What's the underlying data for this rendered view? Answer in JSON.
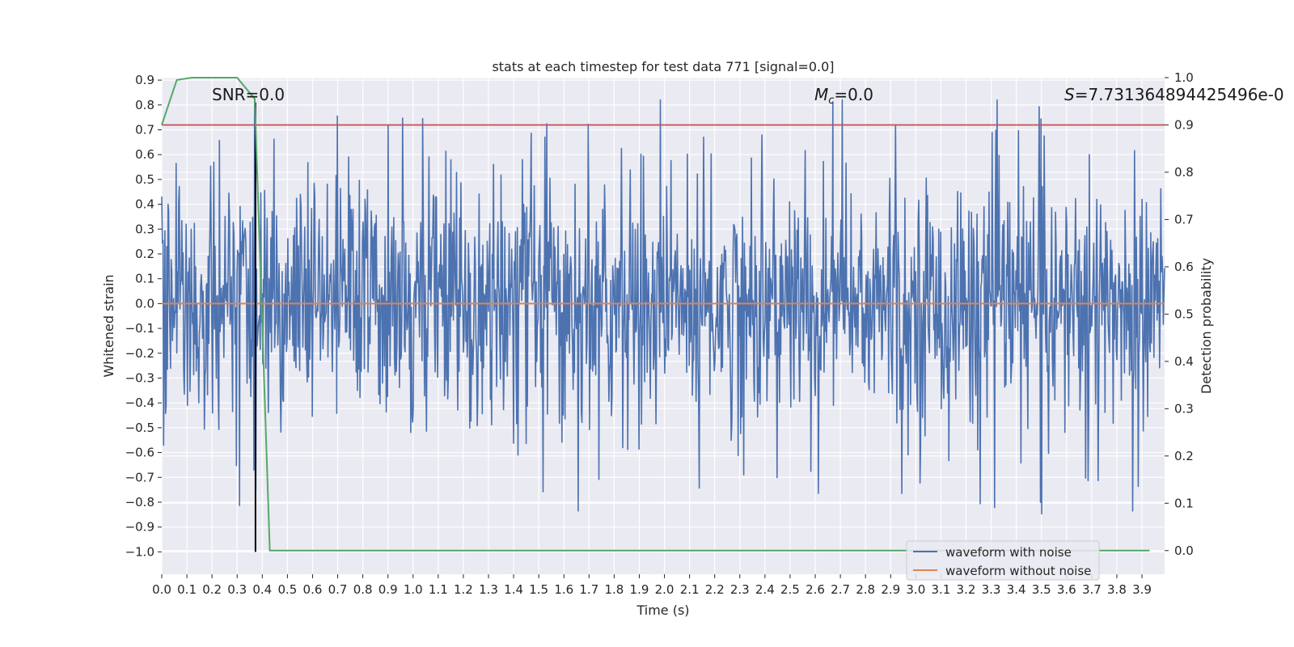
{
  "chart_data": {
    "type": "line",
    "title": "stats at each timestep for test data 771 [signal=0.0]",
    "xlabel": "Time (s)",
    "ylabel": "Whitened strain",
    "y2label": "Detection probability",
    "xlim": [
      0.0,
      3.99
    ],
    "ylim": [
      -1.09,
      0.91
    ],
    "y2lim": [
      -0.05,
      1.0
    ],
    "x_ticks": [
      "0.0",
      "0.1",
      "0.2",
      "0.3",
      "0.4",
      "0.5",
      "0.6",
      "0.7",
      "0.8",
      "0.9",
      "1.0",
      "1.1",
      "1.2",
      "1.3",
      "1.4",
      "1.5",
      "1.6",
      "1.7",
      "1.8",
      "1.9",
      "2.0",
      "2.1",
      "2.2",
      "2.3",
      "2.4",
      "2.5",
      "2.6",
      "2.7",
      "2.8",
      "2.9",
      "3.0",
      "3.1",
      "3.2",
      "3.3",
      "3.4",
      "3.5",
      "3.6",
      "3.7",
      "3.8",
      "3.9"
    ],
    "y_ticks": [
      "0.9",
      "0.8",
      "0.7",
      "0.6",
      "0.5",
      "0.4",
      "0.3",
      "0.2",
      "0.1",
      "0.0",
      "−0.1",
      "−0.2",
      "−0.3",
      "−0.4",
      "−0.5",
      "−0.6",
      "−0.7",
      "−0.8",
      "−0.9",
      "−1.0"
    ],
    "y2_ticks": [
      "1.0",
      "0.9",
      "0.8",
      "0.7",
      "0.6",
      "0.5",
      "0.4",
      "0.3",
      "0.2",
      "0.1",
      "0.0"
    ],
    "annotations": {
      "snr": "SNR=0.0",
      "mc_symbol": "M",
      "mc_sub": "c",
      "mc_value": "=0.0",
      "s_symbol": "S",
      "s_value": "=7.731364894425496e-0"
    },
    "grid": true,
    "legend_position": "lower-right",
    "legend": [
      "waveform with noise",
      "waveform without noise"
    ],
    "colors": {
      "noise": "#4c72b0",
      "clean": "#dd8452",
      "prob": "#55a868",
      "threshold": "#c44e52",
      "marker": "#000000",
      "background": "#eaeaf2"
    },
    "series": [
      {
        "name": "waveform with noise",
        "axis": "left",
        "description": "dense noisy whitened strain, roughly between -1.0 and 0.82",
        "seed": 771,
        "n_samples": 1600
      },
      {
        "name": "waveform without noise",
        "axis": "left",
        "x": [
          0.0,
          3.99
        ],
        "values": [
          0.0,
          0.0
        ]
      },
      {
        "name": "detection probability",
        "axis": "right",
        "x": [
          0.0,
          0.06,
          0.12,
          0.18,
          0.24,
          0.3,
          0.37,
          0.43,
          3.93
        ],
        "values": [
          0.9,
          0.995,
          1.0,
          1.0,
          1.0,
          1.0,
          0.955,
          0.0,
          0.0
        ]
      },
      {
        "name": "threshold",
        "axis": "right",
        "x": [
          0.0,
          3.99
        ],
        "values": [
          0.9,
          0.9
        ]
      },
      {
        "name": "trigger time",
        "axis": "left",
        "x": [
          0.373,
          0.373
        ],
        "values": [
          -1.0,
          0.81
        ]
      }
    ]
  }
}
